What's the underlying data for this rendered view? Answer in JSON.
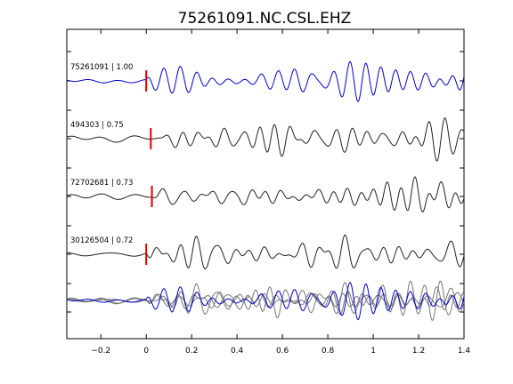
{
  "chart_data": {
    "type": "line",
    "title": "75261091.NC.CSL.EHZ",
    "xlabel": "",
    "ylabel": "",
    "xlim": [
      -0.35,
      1.4
    ],
    "xticks": [
      -0.2,
      0,
      0.2,
      0.4,
      0.6,
      0.8,
      1.0,
      1.2,
      1.4
    ],
    "xtick_labels": [
      "−0.2",
      "0",
      "0.2",
      "0.4",
      "0.6",
      "0.8",
      "1",
      "1.2",
      "1.4"
    ],
    "grid": false,
    "legend": "none",
    "colors": {
      "reference": "#0000cc",
      "match": "#222222",
      "stack_match": "#777777",
      "pick": "#dd0000"
    },
    "traces": [
      {
        "name": "75261091",
        "label": "75261091 | 1.00",
        "cc": 1.0,
        "color": "#0000cc",
        "pick_time": 0.0,
        "onset": 0.0,
        "seed": 1,
        "amp": 0.75
      },
      {
        "name": "494303",
        "label": "494303 | 0.75",
        "cc": 0.75,
        "color": "#222222",
        "pick_time": 0.02,
        "onset": 0.02,
        "seed": 3,
        "amp": 0.75
      },
      {
        "name": "72702681",
        "label": "72702681 | 0.73",
        "cc": 0.73,
        "color": "#222222",
        "pick_time": 0.025,
        "onset": 0.02,
        "seed": 5,
        "amp": 0.75
      },
      {
        "name": "30126504",
        "label": "30126504 | 0.72",
        "cc": 0.72,
        "color": "#222222",
        "pick_time": 0.0,
        "onset": 0.0,
        "seed": 7,
        "amp": 0.75
      }
    ],
    "stack": {
      "label": "",
      "seeds": [
        3,
        5,
        7
      ],
      "reference_seed": 1
    }
  }
}
